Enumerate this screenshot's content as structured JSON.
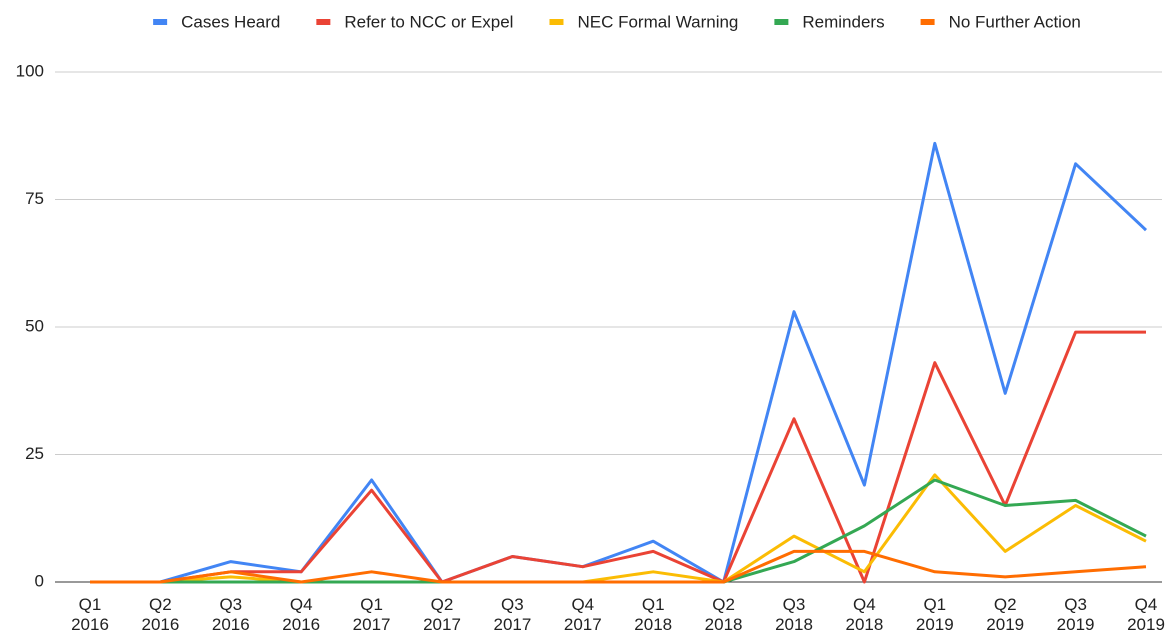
{
  "chart_data": {
    "type": "line",
    "categories": [
      "Q1 2016",
      "Q2 2016",
      "Q3 2016",
      "Q4 2016",
      "Q1 2017",
      "Q2 2017",
      "Q3 2017",
      "Q4 2017",
      "Q1 2018",
      "Q2 2018",
      "Q3 2018",
      "Q4 2018",
      "Q1 2019",
      "Q2 2019",
      "Q3 2019",
      "Q4 2019"
    ],
    "series": [
      {
        "name": "Cases Heard",
        "color": "#4285f4",
        "values": [
          0,
          0,
          4,
          2,
          20,
          0,
          5,
          3,
          8,
          0,
          53,
          19,
          86,
          37,
          82,
          69
        ]
      },
      {
        "name": "Refer to NCC or Expel",
        "color": "#ea4335",
        "values": [
          0,
          0,
          2,
          2,
          18,
          0,
          5,
          3,
          6,
          0,
          32,
          0,
          43,
          15,
          49,
          49
        ]
      },
      {
        "name": "NEC Formal Warning",
        "color": "#fbbc04",
        "values": [
          0,
          0,
          1,
          0,
          0,
          0,
          0,
          0,
          2,
          0,
          9,
          2,
          21,
          6,
          15,
          8
        ]
      },
      {
        "name": "Reminders",
        "color": "#34a853",
        "values": [
          0,
          0,
          0,
          0,
          0,
          0,
          0,
          0,
          0,
          0,
          4,
          11,
          20,
          15,
          16,
          9
        ]
      },
      {
        "name": "No Further Action",
        "color": "#ff6d01",
        "values": [
          0,
          0,
          2,
          0,
          2,
          0,
          0,
          0,
          0,
          0,
          6,
          6,
          2,
          1,
          2,
          3
        ]
      }
    ],
    "ylim": [
      0,
      100
    ],
    "yticks": [
      0,
      25,
      50,
      75,
      100
    ],
    "grid": true,
    "legend": "top"
  }
}
